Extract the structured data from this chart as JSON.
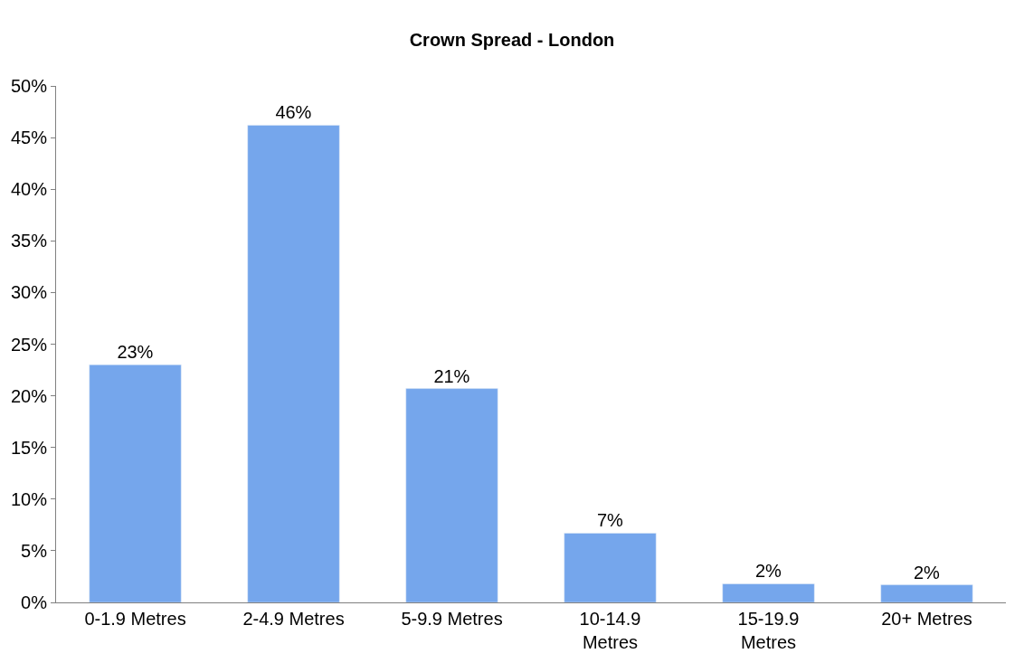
{
  "chart_data": {
    "type": "bar",
    "title": "Crown Spread - London",
    "categories": [
      "0-1.9 Metres",
      "2-4.9 Metres",
      "5-9.9 Metres",
      "10-14.9 Metres",
      "15-19.9 Metres",
      "20+ Metres"
    ],
    "values": [
      23,
      46.2,
      20.7,
      6.7,
      1.8,
      1.7
    ],
    "value_labels": [
      "23%",
      "46%",
      "21%",
      "7%",
      "2%",
      "2%"
    ],
    "color": "#75a6ec",
    "ylim": [
      0,
      50
    ],
    "yticks": [
      {
        "value": 0,
        "label": "0%"
      },
      {
        "value": 5,
        "label": "5%"
      },
      {
        "value": 10,
        "label": "10%"
      },
      {
        "value": 15,
        "label": "15%"
      },
      {
        "value": 20,
        "label": "20%"
      },
      {
        "value": 25,
        "label": "25%"
      },
      {
        "value": 30,
        "label": "30%"
      },
      {
        "value": 35,
        "label": "35%"
      },
      {
        "value": 40,
        "label": "40%"
      },
      {
        "value": 45,
        "label": "45%"
      },
      {
        "value": 50,
        "label": "50%"
      }
    ]
  }
}
